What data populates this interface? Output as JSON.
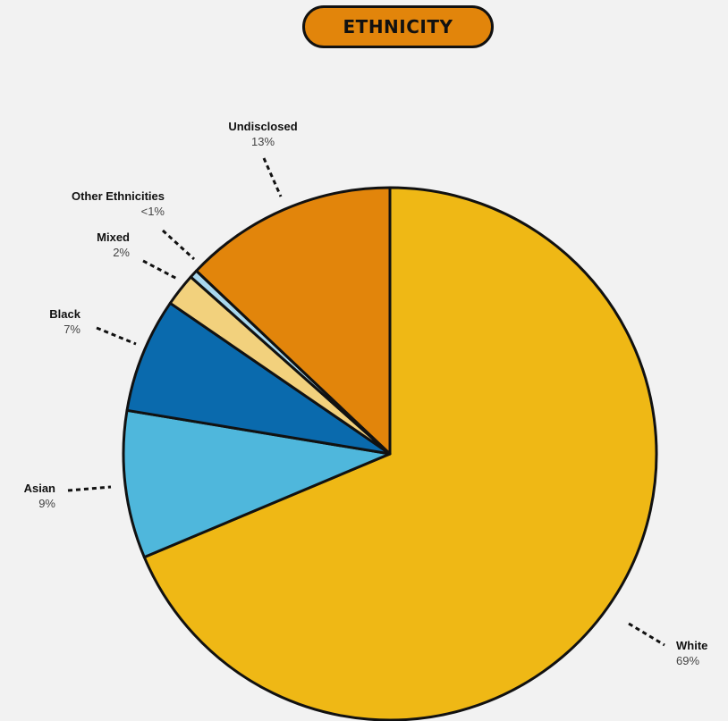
{
  "title": "ETHNICITY",
  "colors": {
    "background": "#f2f2f2",
    "title_fill": "#e2850b",
    "outline": "#111111"
  },
  "chart_data": {
    "type": "pie",
    "start": "12 o'clock, clockwise",
    "slices": [
      {
        "name": "White",
        "value": 69,
        "label": "69%",
        "color": "#efb815"
      },
      {
        "name": "Asian",
        "value": 9,
        "label": "9%",
        "color": "#4fb7dc"
      },
      {
        "name": "Black",
        "value": 7,
        "label": "7%",
        "color": "#0a6aad"
      },
      {
        "name": "Mixed",
        "value": 2,
        "label": "2%",
        "color": "#f2d17d"
      },
      {
        "name": "Other Ethnicities",
        "value": 0.5,
        "label": "<1%",
        "color": "#a9d8ee"
      },
      {
        "name": "Undisclosed",
        "value": 13,
        "label": "13%",
        "color": "#e2850b"
      }
    ]
  }
}
